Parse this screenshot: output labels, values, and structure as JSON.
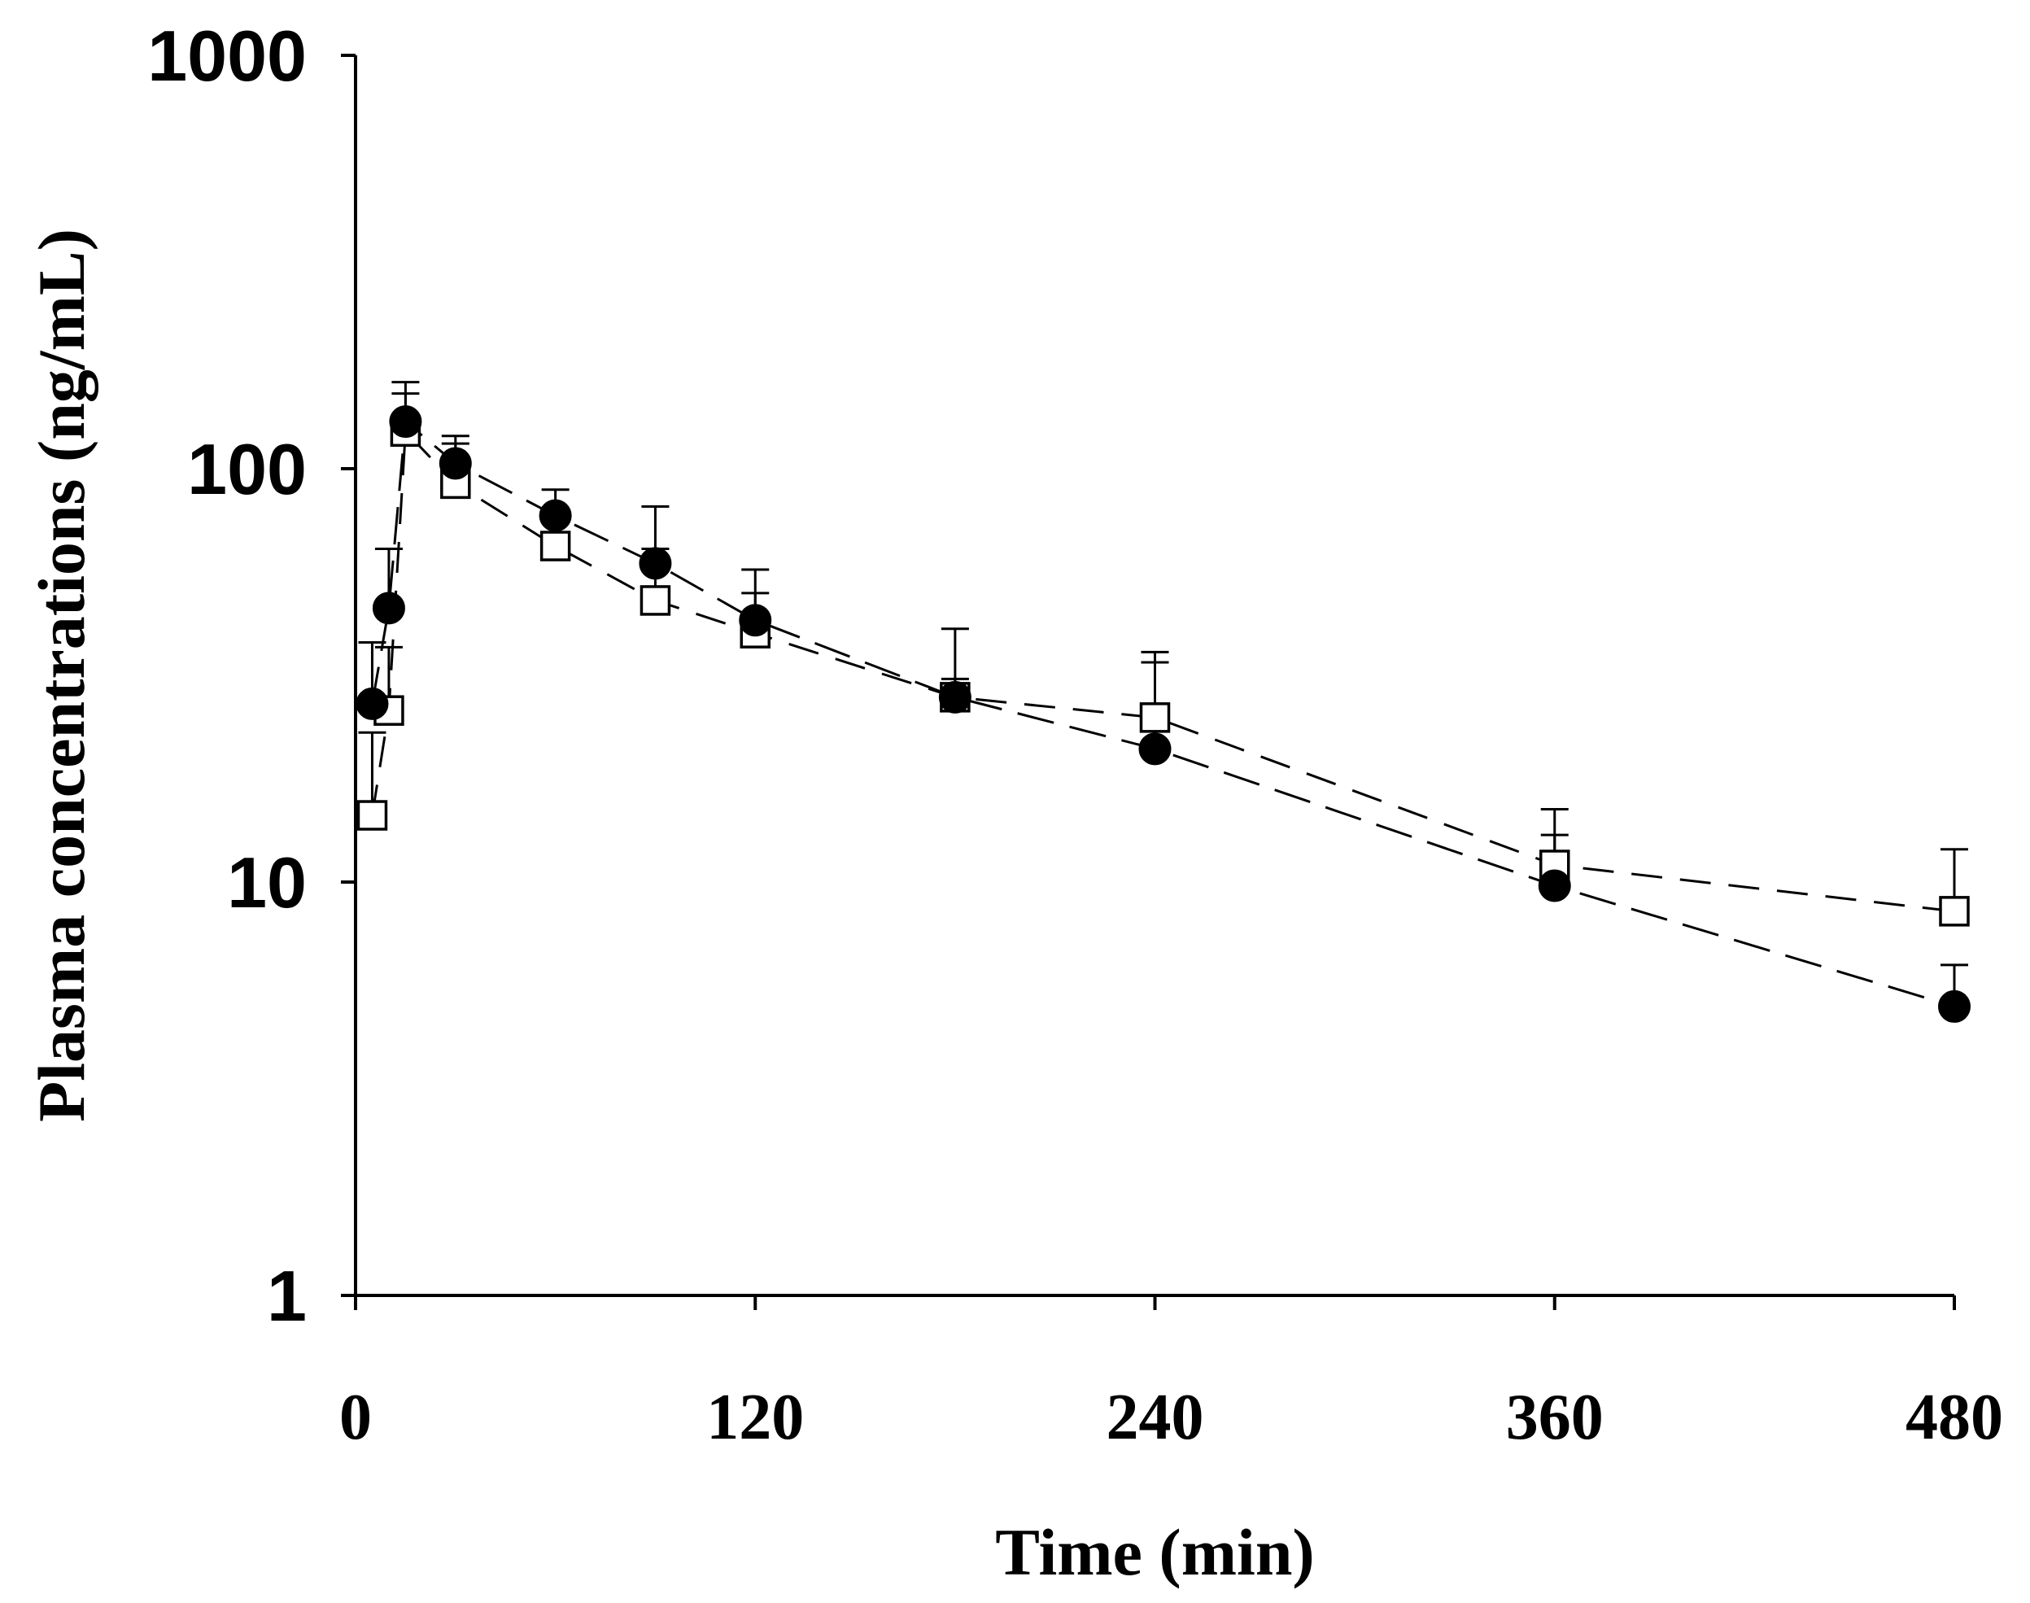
{
  "chart_data": {
    "type": "line",
    "title": "",
    "xlabel": "Time (min)",
    "ylabel": "Plasma concentrations (ng/mL)",
    "xlim": [
      0,
      480
    ],
    "ylim": [
      1,
      1000
    ],
    "yscale": "log",
    "grid": false,
    "xticks": [
      0,
      120,
      240,
      360,
      480
    ],
    "xtick_labels": [
      "0",
      "120",
      "240",
      "360",
      "480"
    ],
    "yticks": [
      1,
      10,
      100,
      1000
    ],
    "ytick_labels": [
      "1",
      "10",
      "100",
      "1000"
    ],
    "series": [
      {
        "name": "filled circles",
        "marker": "filled-circle",
        "line": "long-dash",
        "x": [
          5,
          10,
          15,
          30,
          60,
          90,
          120,
          180,
          240,
          360,
          480
        ],
        "y": [
          27,
          46,
          130,
          103,
          77,
          59,
          43,
          28,
          21,
          9.8,
          5.0
        ],
        "error_upper": [
          38,
          64,
          162,
          120,
          89,
          81,
          57,
          41,
          36,
          15,
          6.3
        ]
      },
      {
        "name": "open squares",
        "marker": "open-square",
        "line": "dash",
        "x": [
          5,
          10,
          15,
          30,
          60,
          90,
          120,
          180,
          240,
          360,
          480
        ],
        "y": [
          14.5,
          26,
          123,
          92,
          65,
          48,
          40,
          28,
          25,
          11,
          8.5
        ],
        "error_upper": [
          23,
          37,
          152,
          115,
          79,
          64,
          50,
          31,
          34,
          13,
          12
        ]
      }
    ]
  },
  "colors": {
    "ink": "#000000",
    "background": "#ffffff",
    "marker_fill_open": "#ffffff"
  }
}
